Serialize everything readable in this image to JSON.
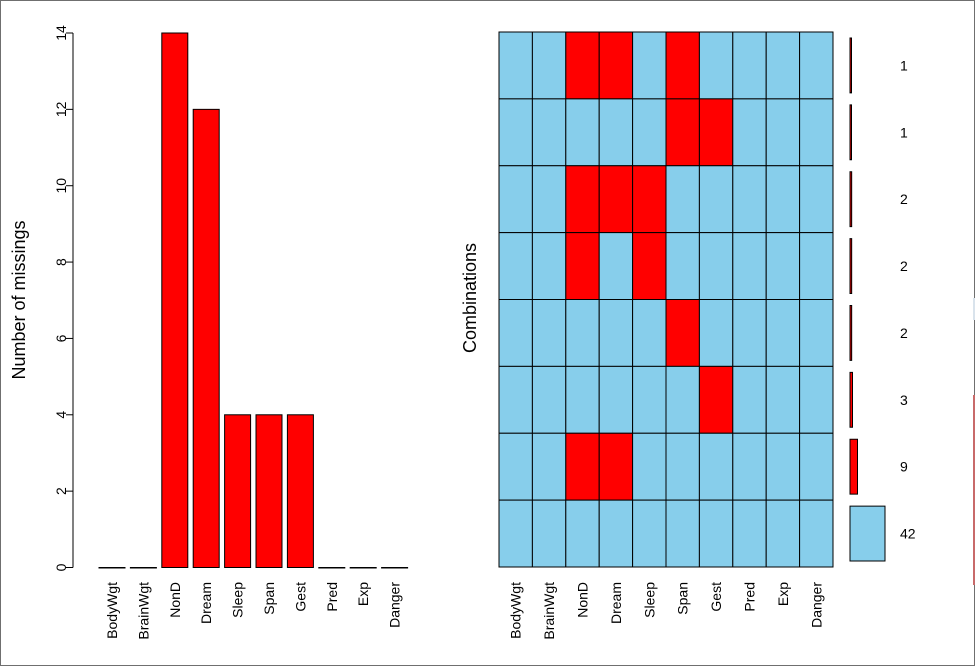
{
  "chart_data": [
    {
      "type": "bar",
      "title": "",
      "xlabel": "",
      "ylabel": "Number of missings",
      "categories": [
        "BodyWgt",
        "BrainWgt",
        "NonD",
        "Dream",
        "Sleep",
        "Span",
        "Gest",
        "Pred",
        "Exp",
        "Danger"
      ],
      "values": [
        0,
        0,
        14,
        12,
        4,
        4,
        4,
        0,
        0,
        0
      ],
      "ylim": [
        0,
        14
      ],
      "yticks": [
        0,
        2,
        4,
        6,
        8,
        10,
        12,
        14
      ],
      "grid": false,
      "bar_color": "#ff0000"
    },
    {
      "type": "heatmap",
      "title": "",
      "ylabel": "Combinations",
      "columns": [
        "BodyWgt",
        "BrainWgt",
        "NonD",
        "Dream",
        "Sleep",
        "Span",
        "Gest",
        "Pred",
        "Exp",
        "Danger"
      ],
      "rows": [
        [
          0,
          0,
          1,
          1,
          0,
          1,
          0,
          0,
          0,
          0
        ],
        [
          0,
          0,
          0,
          0,
          0,
          1,
          1,
          0,
          0,
          0
        ],
        [
          0,
          0,
          1,
          1,
          1,
          0,
          0,
          0,
          0,
          0
        ],
        [
          0,
          0,
          1,
          0,
          1,
          0,
          0,
          0,
          0,
          0
        ],
        [
          0,
          0,
          0,
          0,
          0,
          1,
          0,
          0,
          0,
          0
        ],
        [
          0,
          0,
          0,
          0,
          0,
          0,
          1,
          0,
          0,
          0
        ],
        [
          0,
          0,
          1,
          1,
          0,
          0,
          0,
          0,
          0,
          0
        ],
        [
          0,
          0,
          0,
          0,
          0,
          0,
          0,
          0,
          0,
          0
        ]
      ],
      "counts": [
        1,
        1,
        2,
        2,
        2,
        3,
        9,
        42
      ],
      "count_labels": [
        "1",
        "1",
        "2",
        "2",
        "2",
        "3",
        "9",
        "42"
      ],
      "missing_color": "#ff0000",
      "observed_color": "#87ceeb"
    }
  ]
}
